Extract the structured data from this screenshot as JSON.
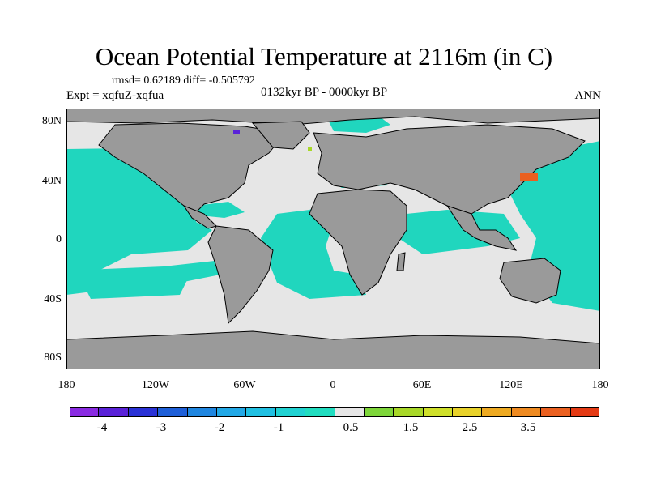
{
  "title": "Ocean Potential Temperature at 2116m (in C)",
  "stats": "rmsd= 0.62189 diff= -0.505792",
  "experiment": "Expt = xqfuZ-xqfua",
  "period": "0132kyr BP - 0000kyr BP",
  "season": "ANN",
  "lat_labels": [
    "80N",
    "40N",
    "0",
    "40S",
    "80S"
  ],
  "lon_labels": [
    "180",
    "120W",
    "60W",
    "0",
    "60E",
    "120E",
    "180"
  ],
  "colorbar": {
    "colors": [
      "#8a2be2",
      "#5a22d8",
      "#2a32d6",
      "#1e5fd8",
      "#1f86e0",
      "#22a8e6",
      "#20c0e2",
      "#20d2d2",
      "#20ddc0",
      "#e6e6e6",
      "#7ed63a",
      "#a8d828",
      "#cfe02a",
      "#e8d22a",
      "#eeaa22",
      "#ee8a20",
      "#ea6020",
      "#e43a14"
    ],
    "tick_labels": [
      "-4",
      "-3",
      "-2",
      "-1",
      "0.5",
      "1.5",
      "2.5",
      "3.5"
    ]
  },
  "colors": {
    "land": "#9a9a9a",
    "neutral_ocean": "#e6e6e6",
    "cold_anomaly": "#20d6be"
  }
}
